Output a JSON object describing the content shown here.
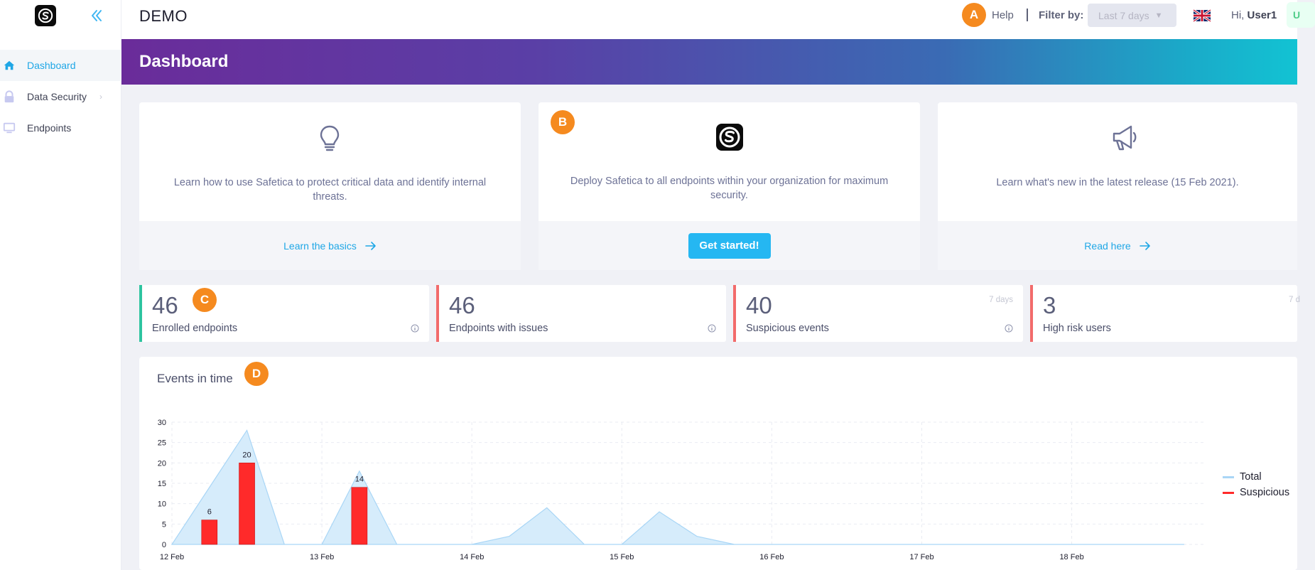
{
  "app": {
    "title": "DEMO",
    "logo_icon": "safetica-logo-icon"
  },
  "sidebar": {
    "items": [
      {
        "label": "Dashboard",
        "icon": "home-icon",
        "active": true
      },
      {
        "label": "Data Security",
        "icon": "lock-icon",
        "has_submenu": true
      },
      {
        "label": "Endpoints",
        "icon": "monitor-icon"
      }
    ]
  },
  "header": {
    "help_label": "Help",
    "filter_label": "Filter by:",
    "filter_value": "Last 7 days",
    "greeting_prefix": "Hi,",
    "user_name": "User1",
    "user_badge": "U"
  },
  "markers": {
    "a": "A",
    "b": "B",
    "c": "C",
    "d": "D"
  },
  "banner": {
    "title": "Dashboard"
  },
  "info_cards": [
    {
      "icon": "lightbulb-icon",
      "text": "Learn how to use Safetica to protect critical data and identify internal threats.",
      "action": "Learn the basics"
    },
    {
      "icon": "safetica-logo-icon",
      "text": "Deploy Safetica to all endpoints within your organization for maximum security.",
      "action": "Get started!"
    },
    {
      "icon": "megaphone-icon",
      "text": "Learn what's new in the latest release (15 Feb 2021).",
      "action": "Read here"
    }
  ],
  "stats": [
    {
      "value": "46",
      "label": "Enrolled endpoints",
      "accent": "#2ec4a0"
    },
    {
      "value": "46",
      "label": "Endpoints with issues",
      "accent": "#f26b6b"
    },
    {
      "value": "40",
      "label": "Suspicious events",
      "period": "7 days",
      "accent": "#f26b6b"
    },
    {
      "value": "3",
      "label": "High risk users",
      "period": "7 d",
      "accent": "#f26b6b"
    }
  ],
  "colors": {
    "total_area": "#d6ecfb",
    "total_line": "#a9d6f6",
    "suspicious": "#ff2a2a"
  },
  "chart_data": {
    "title": "Events in time",
    "type": "area+bar",
    "x_ticks": [
      "12 Feb",
      "13 Feb",
      "14 Feb",
      "15 Feb",
      "16 Feb",
      "17 Feb",
      "18 Feb"
    ],
    "ylim": [
      0,
      30
    ],
    "y_ticks": [
      0,
      5,
      10,
      15,
      20,
      25,
      30
    ],
    "grid": true,
    "legend_position": "right",
    "series": [
      {
        "name": "Total",
        "kind": "area",
        "x": [
          0,
          0.25,
          0.5,
          0.75,
          1,
          1.25,
          1.5,
          1.75,
          2,
          2.25,
          2.5,
          2.75,
          3,
          3.25,
          3.5,
          3.75,
          4,
          6.75
        ],
        "values": [
          0,
          14,
          28,
          0,
          0,
          18,
          0,
          0,
          0,
          2,
          9,
          0,
          0,
          8,
          2,
          0,
          0,
          0
        ]
      },
      {
        "name": "Suspicious",
        "kind": "bar",
        "x": [
          0.25,
          0.5,
          1.25
        ],
        "values": [
          6,
          20,
          14
        ],
        "labels": [
          "6",
          "20",
          "14"
        ]
      }
    ]
  }
}
